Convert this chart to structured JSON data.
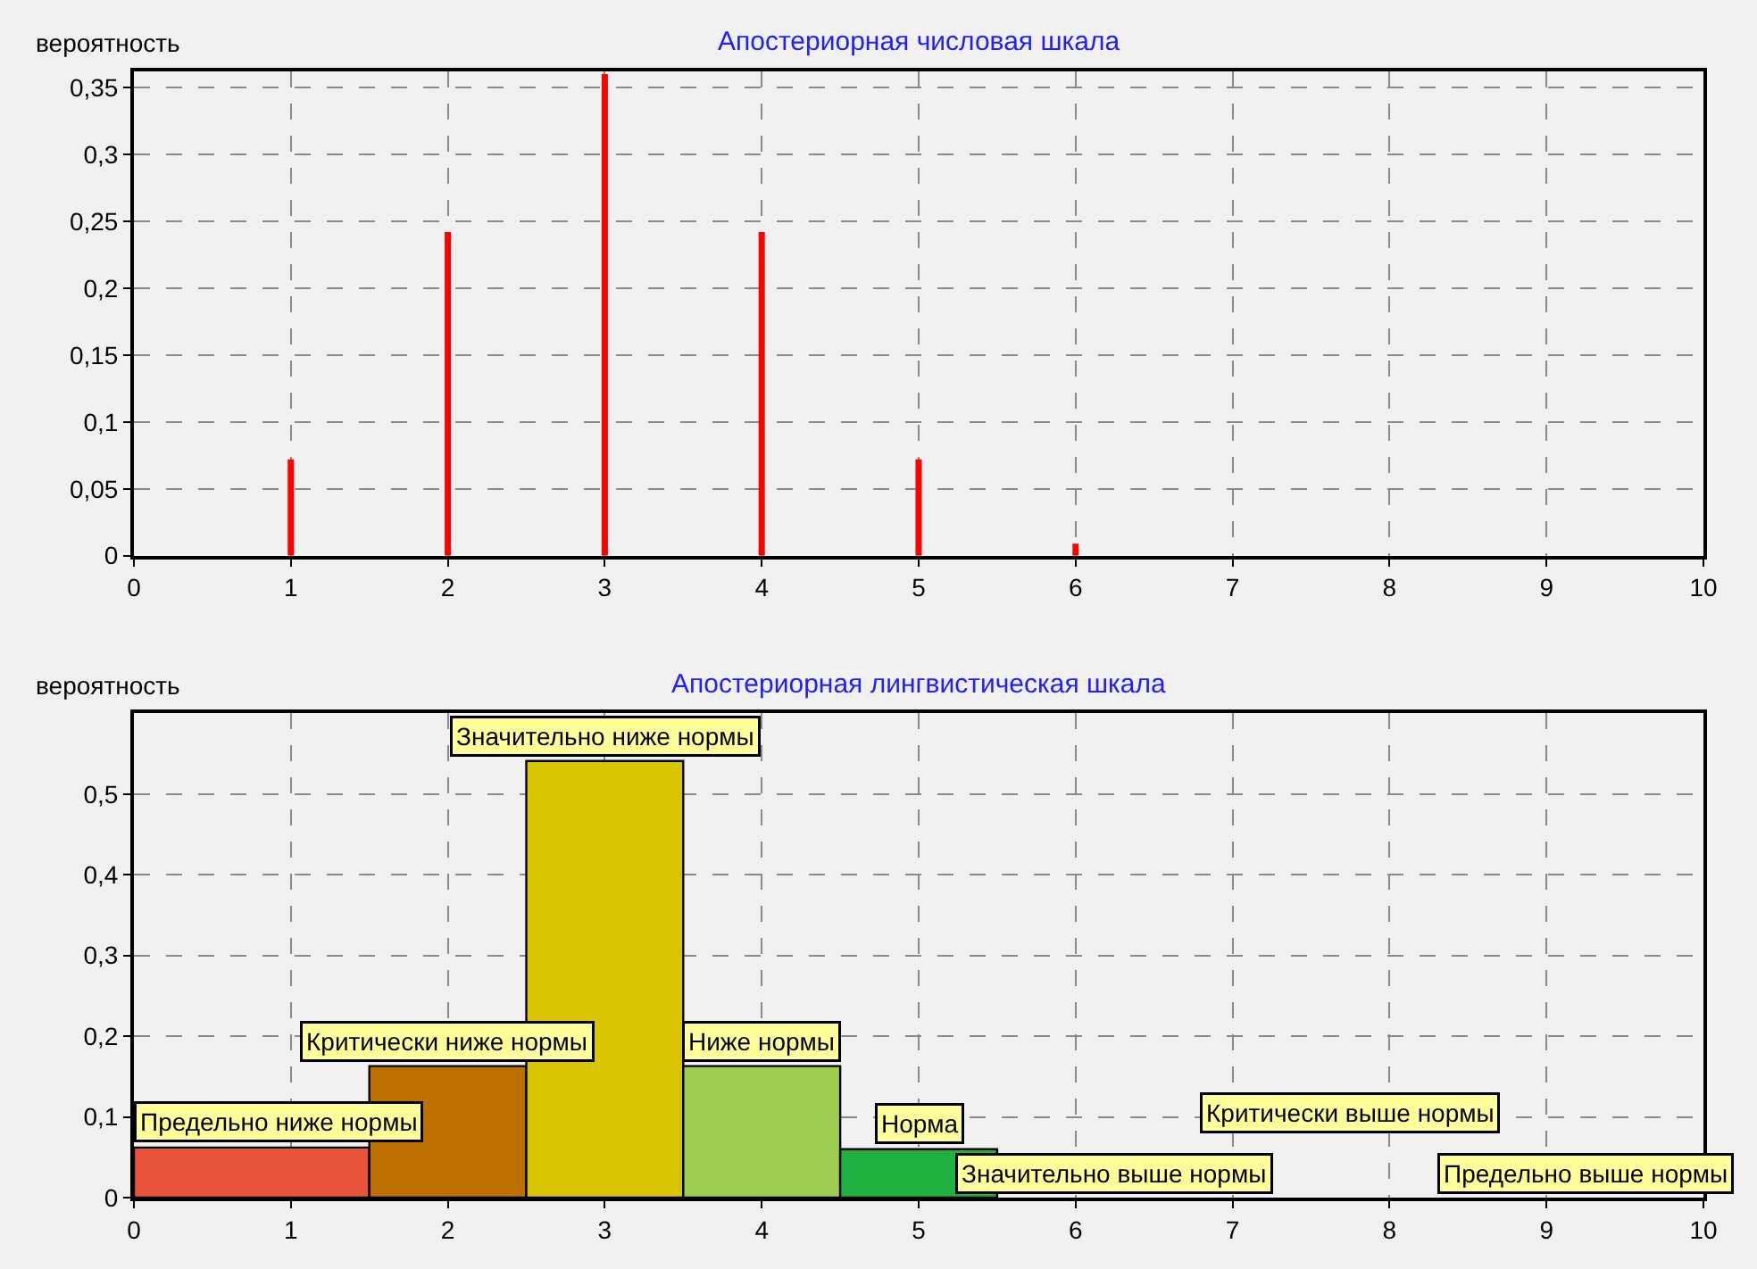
{
  "chart_data": [
    {
      "type": "bar",
      "title": "Апостериорная числовая шкала",
      "ylabel": "вероятность",
      "x": [
        1,
        2,
        3,
        4,
        5,
        6
      ],
      "values": [
        0.072,
        0.242,
        0.36,
        0.242,
        0.072,
        0.009
      ],
      "color": "#ff0000",
      "xlim": [
        0,
        10
      ],
      "xticks": [
        0,
        1,
        2,
        3,
        4,
        5,
        6,
        7,
        8,
        9,
        10
      ],
      "ylim": [
        0,
        0.362
      ],
      "yticks": [
        0,
        {
          "value": 0.05,
          "label": "0,05"
        },
        {
          "value": 0.1,
          "label": "0,1"
        },
        {
          "value": 0.15,
          "label": "0,15"
        },
        {
          "value": 0.2,
          "label": "0,2"
        },
        {
          "value": 0.25,
          "label": "0,25"
        },
        {
          "value": 0.3,
          "label": "0,3"
        },
        {
          "value": 0.35,
          "label": "0,35"
        }
      ],
      "grid": true
    },
    {
      "type": "histogram",
      "title": "Апостериорная лингвистическая шкала",
      "ylabel": "вероятность",
      "bins": [
        0,
        1.5,
        2.5,
        3.5,
        4.5,
        5.5
      ],
      "values": [
        0.062,
        0.163,
        0.541,
        0.163,
        0.06
      ],
      "colors": [
        "#e8543a",
        "#bb7000",
        "#d8c400",
        "#9ccc50",
        "#20b040"
      ],
      "annotations": [
        {
          "text": "Предельно ниже нормы",
          "x": 0.75,
          "y": 0.062
        },
        {
          "text": "Критически ниже нормы",
          "x": 2,
          "y": 0.163
        },
        {
          "text": "Значительно ниже нормы",
          "x": 3,
          "y": 0.541
        },
        {
          "text": "Ниже нормы",
          "x": 4,
          "y": 0.163
        },
        {
          "text": "Норма",
          "x": 5,
          "y": 0.06
        },
        "Значительно выше нормы",
        "Критически выше нормы",
        "Предельно выше нормы"
      ],
      "xlim": [
        0,
        10
      ],
      "xticks": [
        0,
        1,
        2,
        3,
        4,
        5,
        6,
        7,
        8,
        9,
        10
      ],
      "ylim": [
        0,
        0.6
      ],
      "yticks": [
        0,
        {
          "value": 0.1,
          "label": "0,1"
        },
        {
          "value": 0.2,
          "label": "0,2"
        },
        {
          "value": 0.3,
          "label": "0,3"
        },
        {
          "value": 0.4,
          "label": "0,4"
        },
        {
          "value": 0.5,
          "label": "0,5"
        }
      ],
      "grid": true
    }
  ]
}
